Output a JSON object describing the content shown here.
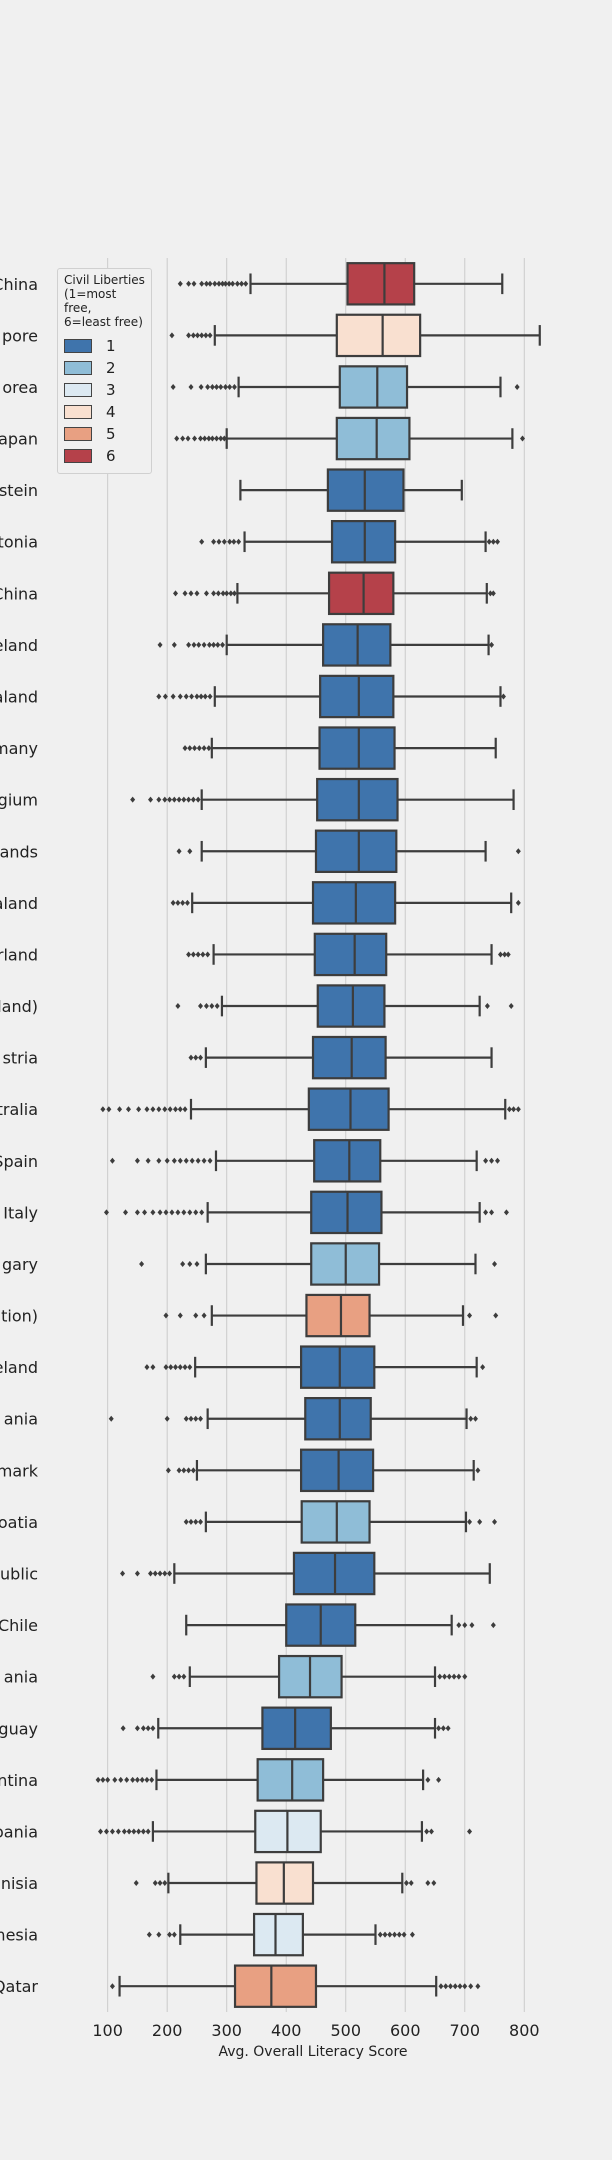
{
  "chart_data": {
    "type": "box",
    "orientation": "horizontal",
    "xlabel": "Avg. Overall Literacy Score",
    "xlim": [
      30,
      860
    ],
    "x_ticks": [
      100,
      200,
      300,
      400,
      500,
      600,
      700,
      800
    ],
    "grid": "vertical",
    "legend": {
      "title": "Civil Liberties\n(1=most free,\n6=least free)",
      "placement": "top-left",
      "entries": [
        {
          "label": "1",
          "color": "#3f74ac"
        },
        {
          "label": "2",
          "color": "#8fbdd7"
        },
        {
          "label": "3",
          "color": "#dce9f2"
        },
        {
          "label": "4",
          "color": "#f9e0d0"
        },
        {
          "label": "5",
          "color": "#e8a082"
        },
        {
          "label": "6",
          "color": "#b5414a"
        }
      ]
    },
    "boxes": [
      {
        "label": "China",
        "cl": "6",
        "whislo": 340,
        "q1": 503,
        "med": 565,
        "q3": 615,
        "whishi": 763,
        "fliers": [
          222,
          236,
          245,
          258,
          266,
          272,
          280,
          287,
          293,
          298,
          304,
          310,
          318,
          325,
          332
        ]
      },
      {
        "label": "pore",
        "cl": "4",
        "whislo": 280,
        "q1": 485,
        "med": 562,
        "q3": 625,
        "whishi": 826,
        "fliers": [
          208,
          236,
          244,
          251,
          258,
          265,
          272
        ]
      },
      {
        "label": "orea",
        "cl": "2",
        "whislo": 320,
        "q1": 490,
        "med": 553,
        "q3": 603,
        "whishi": 760,
        "fliers": [
          210,
          240,
          257,
          268,
          276,
          283,
          290,
          298,
          305,
          313,
          788
        ]
      },
      {
        "label": "apan",
        "cl": "2",
        "whislo": 300,
        "q1": 485,
        "med": 552,
        "q3": 607,
        "whishi": 780,
        "fliers": [
          216,
          226,
          235,
          246,
          256,
          263,
          270,
          276,
          283,
          290,
          296,
          797
        ]
      },
      {
        "label": "stein",
        "cl": "1",
        "whislo": 323,
        "q1": 470,
        "med": 532,
        "q3": 597,
        "whishi": 695,
        "fliers": []
      },
      {
        "label": "tonia",
        "cl": "1",
        "whislo": 330,
        "q1": 477,
        "med": 532,
        "q3": 583,
        "whishi": 735,
        "fliers": [
          258,
          278,
          287,
          296,
          305,
          312,
          320,
          741,
          748,
          755
        ]
      },
      {
        "label": "China",
        "cl": "6",
        "whislo": 318,
        "q1": 472,
        "med": 530,
        "q3": 580,
        "whishi": 737,
        "fliers": [
          214,
          230,
          240,
          250,
          266,
          278,
          286,
          294,
          300,
          307,
          313,
          743,
          748
        ]
      },
      {
        "label": "eland",
        "cl": "1",
        "whislo": 300,
        "q1": 462,
        "med": 520,
        "q3": 575,
        "whishi": 740,
        "fliers": [
          188,
          212,
          236,
          245,
          253,
          262,
          271,
          278,
          285,
          293,
          745
        ]
      },
      {
        "label": "aland",
        "cl": "1",
        "whislo": 280,
        "q1": 457,
        "med": 522,
        "q3": 580,
        "whishi": 760,
        "fliers": [
          186,
          197,
          210,
          222,
          232,
          241,
          250,
          257,
          264,
          272,
          765
        ]
      },
      {
        "label": "many",
        "cl": "1",
        "whislo": 275,
        "q1": 456,
        "med": 522,
        "q3": 582,
        "whishi": 752,
        "fliers": [
          230,
          238,
          246,
          254,
          262,
          270
        ]
      },
      {
        "label": "gium",
        "cl": "1",
        "whislo": 258,
        "q1": 452,
        "med": 522,
        "q3": 587,
        "whishi": 782,
        "fliers": [
          142,
          172,
          186,
          196,
          204,
          212,
          220,
          228,
          236,
          244,
          252
        ]
      },
      {
        "label": "ands",
        "cl": "1",
        "whislo": 258,
        "q1": 450,
        "med": 522,
        "q3": 585,
        "whishi": 735,
        "fliers": [
          220,
          238,
          790
        ]
      },
      {
        "label": "aland",
        "cl": "1",
        "whislo": 242,
        "q1": 445,
        "med": 517,
        "q3": 583,
        "whishi": 778,
        "fliers": [
          210,
          218,
          226,
          234,
          790
        ]
      },
      {
        "label": "rland",
        "cl": "1",
        "whislo": 278,
        "q1": 448,
        "med": 515,
        "q3": 568,
        "whishi": 745,
        "fliers": [
          236,
          244,
          252,
          260,
          268,
          760,
          767,
          773
        ]
      },
      {
        "label": "land)",
        "cl": "1",
        "whislo": 292,
        "q1": 453,
        "med": 512,
        "q3": 565,
        "whishi": 725,
        "fliers": [
          218,
          256,
          266,
          275,
          284,
          738,
          778
        ]
      },
      {
        "label": "stria",
        "cl": "1",
        "whislo": 265,
        "q1": 445,
        "med": 510,
        "q3": 567,
        "whishi": 745,
        "fliers": [
          240,
          248,
          256
        ]
      },
      {
        "label": "tralia",
        "cl": "1",
        "whislo": 240,
        "q1": 438,
        "med": 508,
        "q3": 572,
        "whishi": 768,
        "fliers": [
          92,
          102,
          120,
          135,
          152,
          166,
          176,
          186,
          196,
          205,
          214,
          222,
          230,
          775,
          782,
          790
        ]
      },
      {
        "label": "Spain",
        "cl": "1",
        "whislo": 282,
        "q1": 447,
        "med": 506,
        "q3": 558,
        "whishi": 720,
        "fliers": [
          108,
          150,
          168,
          186,
          200,
          212,
          222,
          232,
          242,
          252,
          262,
          272,
          735,
          745,
          755
        ]
      },
      {
        "label": "Italy",
        "cl": "1",
        "whislo": 268,
        "q1": 442,
        "med": 503,
        "q3": 560,
        "whishi": 725,
        "fliers": [
          98,
          130,
          150,
          162,
          176,
          188,
          198,
          208,
          218,
          228,
          238,
          248,
          258,
          735,
          745,
          770
        ]
      },
      {
        "label": "gary",
        "cl": "2",
        "whislo": 265,
        "q1": 442,
        "med": 500,
        "q3": 556,
        "whishi": 718,
        "fliers": [
          157,
          226,
          238,
          250,
          750
        ]
      },
      {
        "label": "tion)",
        "cl": "5",
        "whislo": 275,
        "q1": 434,
        "med": 492,
        "q3": 540,
        "whishi": 697,
        "fliers": [
          198,
          222,
          248,
          262,
          708,
          752
        ]
      },
      {
        "label": "eland",
        "cl": "1",
        "whislo": 247,
        "q1": 425,
        "med": 490,
        "q3": 548,
        "whishi": 720,
        "fliers": [
          166,
          176,
          198,
          206,
          214,
          222,
          230,
          238,
          730
        ]
      },
      {
        "label": "ania",
        "cl": "1",
        "whislo": 268,
        "q1": 432,
        "med": 490,
        "q3": 542,
        "whishi": 703,
        "fliers": [
          106,
          200,
          232,
          240,
          248,
          256,
          710,
          718
        ]
      },
      {
        "label": "mark",
        "cl": "1",
        "whislo": 250,
        "q1": 425,
        "med": 488,
        "q3": 546,
        "whishi": 715,
        "fliers": [
          202,
          220,
          228,
          236,
          244,
          722
        ]
      },
      {
        "label": "oatia",
        "cl": "2",
        "whislo": 265,
        "q1": 426,
        "med": 485,
        "q3": 540,
        "whishi": 702,
        "fliers": [
          232,
          240,
          248,
          256,
          708,
          725,
          750
        ]
      },
      {
        "label": "ublic",
        "cl": "1",
        "whislo": 212,
        "q1": 413,
        "med": 482,
        "q3": 548,
        "whishi": 742,
        "fliers": [
          125,
          150,
          172,
          180,
          188,
          196,
          204
        ]
      },
      {
        "label": "Chile",
        "cl": "1",
        "whislo": 232,
        "q1": 400,
        "med": 458,
        "q3": 516,
        "whishi": 678,
        "fliers": [
          690,
          700,
          712,
          748
        ]
      },
      {
        "label": "ania",
        "cl": "2",
        "whislo": 238,
        "q1": 388,
        "med": 440,
        "q3": 493,
        "whishi": 650,
        "fliers": [
          176,
          212,
          220,
          228,
          658,
          666,
          674,
          682,
          690,
          700
        ]
      },
      {
        "label": "guay",
        "cl": "1",
        "whislo": 185,
        "q1": 360,
        "med": 415,
        "q3": 475,
        "whishi": 650,
        "fliers": [
          126,
          150,
          160,
          168,
          176,
          656,
          664,
          672
        ]
      },
      {
        "label": "ntina",
        "cl": "2",
        "whislo": 182,
        "q1": 352,
        "med": 410,
        "q3": 462,
        "whishi": 630,
        "fliers": [
          84,
          92,
          100,
          112,
          122,
          132,
          142,
          150,
          158,
          166,
          174,
          638,
          656
        ]
      },
      {
        "label": "pania",
        "cl": "3",
        "whislo": 176,
        "q1": 348,
        "med": 402,
        "q3": 458,
        "whishi": 628,
        "fliers": [
          88,
          98,
          108,
          118,
          128,
          136,
          144,
          152,
          160,
          168,
          636,
          644,
          708
        ]
      },
      {
        "label": "nisia",
        "cl": "4",
        "whislo": 202,
        "q1": 350,
        "med": 396,
        "q3": 445,
        "whishi": 595,
        "fliers": [
          148,
          180,
          188,
          196,
          602,
          610,
          638,
          648
        ]
      },
      {
        "label": "nesia",
        "cl": "3",
        "whislo": 222,
        "q1": 346,
        "med": 382,
        "q3": 428,
        "whishi": 550,
        "fliers": [
          170,
          186,
          204,
          212,
          558,
          566,
          574,
          582,
          590,
          598,
          612
        ]
      },
      {
        "label": "Qatar",
        "cl": "5",
        "whislo": 120,
        "q1": 314,
        "med": 375,
        "q3": 450,
        "whishi": 652,
        "fliers": [
          108,
          660,
          668,
          676,
          684,
          692,
          700,
          710,
          722
        ]
      }
    ]
  }
}
